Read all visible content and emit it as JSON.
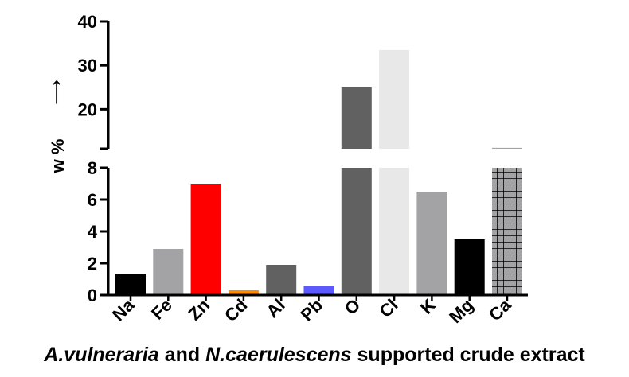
{
  "chart_data": {
    "type": "bar",
    "ylabel": "w %",
    "ylabel_arrow": "⟶",
    "categories": [
      "Na",
      "Fe",
      "Zn",
      "Cd",
      "Al",
      "Pb",
      "O",
      "Cl",
      "K",
      "Mg",
      "Ca"
    ],
    "values": [
      1.3,
      2.9,
      7.0,
      0.3,
      1.9,
      0.55,
      25.0,
      33.5,
      6.5,
      3.5,
      11.2
    ],
    "colors": [
      "#000000",
      "#a3a3a6",
      "#ff0000",
      "#ff8c00",
      "#616161",
      "#5a5aff",
      "#616161",
      "#e8e8e8",
      "#a3a3a6",
      "#000000",
      "#a3a3a6"
    ],
    "hatched": [
      false,
      false,
      false,
      false,
      false,
      false,
      false,
      false,
      false,
      false,
      true
    ],
    "axis_break": {
      "lower_range": [
        0,
        8
      ],
      "upper_range": [
        11,
        40
      ]
    },
    "yticks_lower": [
      0,
      2,
      4,
      6,
      8
    ],
    "yticks_upper": [
      20,
      30,
      40
    ],
    "xlabel": {
      "part1": "A.vulneraria",
      "part2": " and ",
      "part3": "N.caerulescens",
      "part4": " supported crude extract"
    }
  }
}
